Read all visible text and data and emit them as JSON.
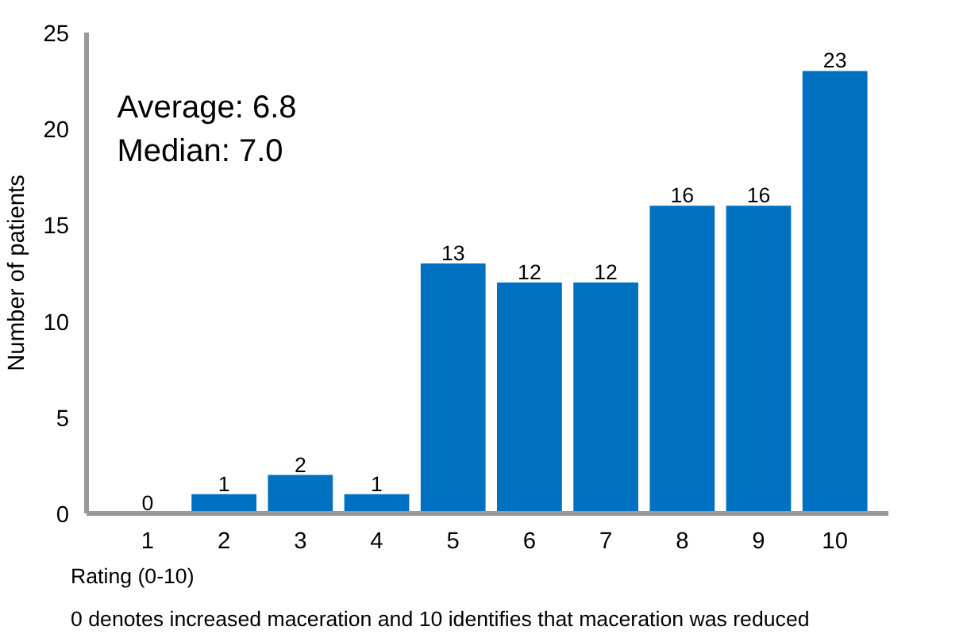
{
  "chart_data": {
    "type": "bar",
    "categories": [
      "1",
      "2",
      "3",
      "4",
      "5",
      "6",
      "7",
      "8",
      "9",
      "10"
    ],
    "values": [
      0,
      1,
      2,
      1,
      13,
      12,
      12,
      16,
      16,
      23
    ],
    "color": "#0070c0",
    "data_labels": true,
    "ylabel": "Number of patients",
    "xlabel": "Rating (0-10)",
    "ylim": [
      0,
      25
    ],
    "yticks": [
      0,
      5,
      10,
      15,
      20,
      25
    ],
    "grid": false,
    "annotations": [
      "Average: 6.8\nMedian: 7.0",
      "0 denotes increased maceration and 10 identifies that maceration was reduced"
    ]
  }
}
